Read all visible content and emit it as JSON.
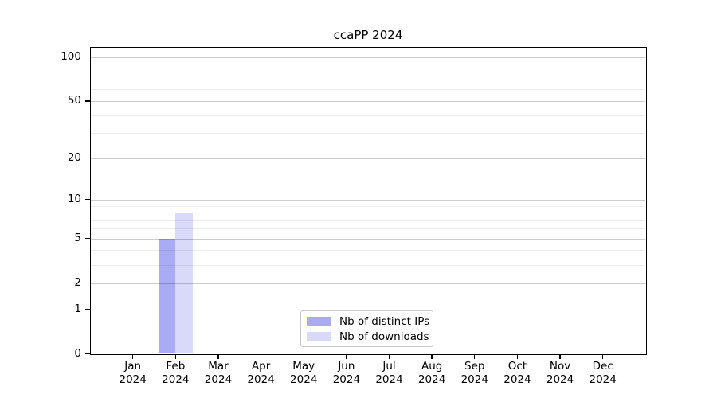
{
  "title": "ccaPP 2024",
  "chart_data": {
    "type": "bar",
    "title": "ccaPP 2024",
    "xlabel": "",
    "ylabel": "",
    "categories": [
      "Jan 2024",
      "Feb 2024",
      "Mar 2024",
      "Apr 2024",
      "May 2024",
      "Jun 2024",
      "Jul 2024",
      "Aug 2024",
      "Sep 2024",
      "Oct 2024",
      "Nov 2024",
      "Dec 2024"
    ],
    "series": [
      {
        "name": "Nb of distinct IPs",
        "color": "#aaaaf5",
        "values": [
          0,
          5,
          0,
          0,
          0,
          0,
          0,
          0,
          0,
          0,
          0,
          0
        ]
      },
      {
        "name": "Nb of downloads",
        "color": "#d9d9fa",
        "values": [
          0,
          8,
          0,
          0,
          0,
          0,
          0,
          0,
          0,
          0,
          0,
          0
        ]
      }
    ],
    "y_axis": {
      "scale": "log10(value+1)",
      "ticks": [
        0,
        1,
        2,
        5,
        10,
        20,
        50,
        100
      ],
      "minor_gridlines": [
        3,
        4,
        6,
        7,
        8,
        9,
        30,
        40,
        60,
        70,
        80,
        90
      ],
      "ylim": [
        0,
        116
      ]
    },
    "grid": "horizontal",
    "legend": {
      "position": "bottom-center"
    }
  }
}
